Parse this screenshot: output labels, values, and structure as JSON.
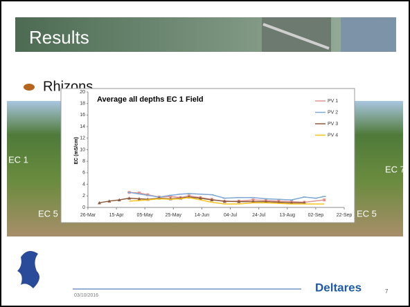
{
  "slide_title": "Results",
  "bullet": "Rhizons",
  "photo_labels": [
    "EC 1",
    "EC 5",
    "EC 7",
    "EC 5"
  ],
  "date": "03/10/2016",
  "brand": "Deltares",
  "page_number": "7",
  "chart_data": {
    "type": "line",
    "title": "Average all depths EC 1 Field",
    "y_label": "EC (mS/cm)",
    "xlim": [
      0,
      180
    ],
    "xticks": [
      {
        "value": 0,
        "label": "26-Mar"
      },
      {
        "value": 20,
        "label": "15-Apr"
      },
      {
        "value": 40,
        "label": "05-May"
      },
      {
        "value": 60,
        "label": "25-May"
      },
      {
        "value": 80,
        "label": "14-Jun"
      },
      {
        "value": 100,
        "label": "04-Jul"
      },
      {
        "value": 120,
        "label": "24-Jul"
      },
      {
        "value": 140,
        "label": "13-Aug"
      },
      {
        "value": 160,
        "label": "02-Sep"
      },
      {
        "value": 180,
        "label": "22-Sep"
      }
    ],
    "ylim": [
      0,
      20
    ],
    "yticks": [
      0,
      2,
      4,
      6,
      8,
      10,
      12,
      14,
      16,
      18,
      20
    ],
    "series": [
      {
        "name": "PV 1",
        "color": "#e0938c",
        "marker": "square",
        "x": [
          29,
          36,
          42,
          50,
          58,
          65,
          71,
          79,
          87,
          96,
          106,
          116,
          125,
          134,
          143,
          152,
          166
        ],
        "values": [
          2.6,
          2.5,
          2.2,
          1.8,
          1.9,
          1.7,
          2.0,
          1.7,
          1.4,
          1.0,
          1.1,
          1.3,
          1.2,
          1.1,
          1.0,
          0.9,
          1.3
        ]
      },
      {
        "name": "PV 2",
        "color": "#7fa7d4",
        "marker": "dash",
        "x": [
          29,
          50,
          58,
          65,
          71,
          79,
          87,
          96,
          106,
          116,
          125,
          134,
          143,
          152,
          160,
          166
        ],
        "values": [
          2.6,
          1.8,
          2.1,
          2.3,
          2.4,
          2.3,
          2.2,
          1.6,
          1.7,
          1.7,
          1.5,
          1.4,
          1.3,
          1.8,
          1.6,
          1.9
        ]
      },
      {
        "name": "PV 3",
        "color": "#8b5a3c",
        "marker": "triangle",
        "x": [
          8,
          15,
          22,
          29,
          36,
          42,
          50,
          58,
          65,
          71,
          79,
          87,
          96,
          106,
          116,
          125,
          134,
          143,
          152
        ],
        "values": [
          0.8,
          1.1,
          1.3,
          1.6,
          1.5,
          1.4,
          1.6,
          1.5,
          1.6,
          1.8,
          1.6,
          1.3,
          1.1,
          1.0,
          1.0,
          1.0,
          0.9,
          0.8,
          0.8
        ]
      },
      {
        "name": "PV 4",
        "color": "#f5c518",
        "marker": "none",
        "x": [
          29,
          36,
          42,
          50,
          58,
          65,
          71,
          79,
          87,
          96,
          106,
          116,
          125,
          134,
          143,
          152,
          166
        ],
        "values": [
          1.1,
          1.2,
          1.3,
          1.5,
          1.4,
          1.5,
          1.7,
          1.3,
          0.9,
          0.6,
          0.6,
          0.8,
          0.8,
          0.7,
          0.6,
          0.6,
          0.6
        ]
      }
    ]
  }
}
